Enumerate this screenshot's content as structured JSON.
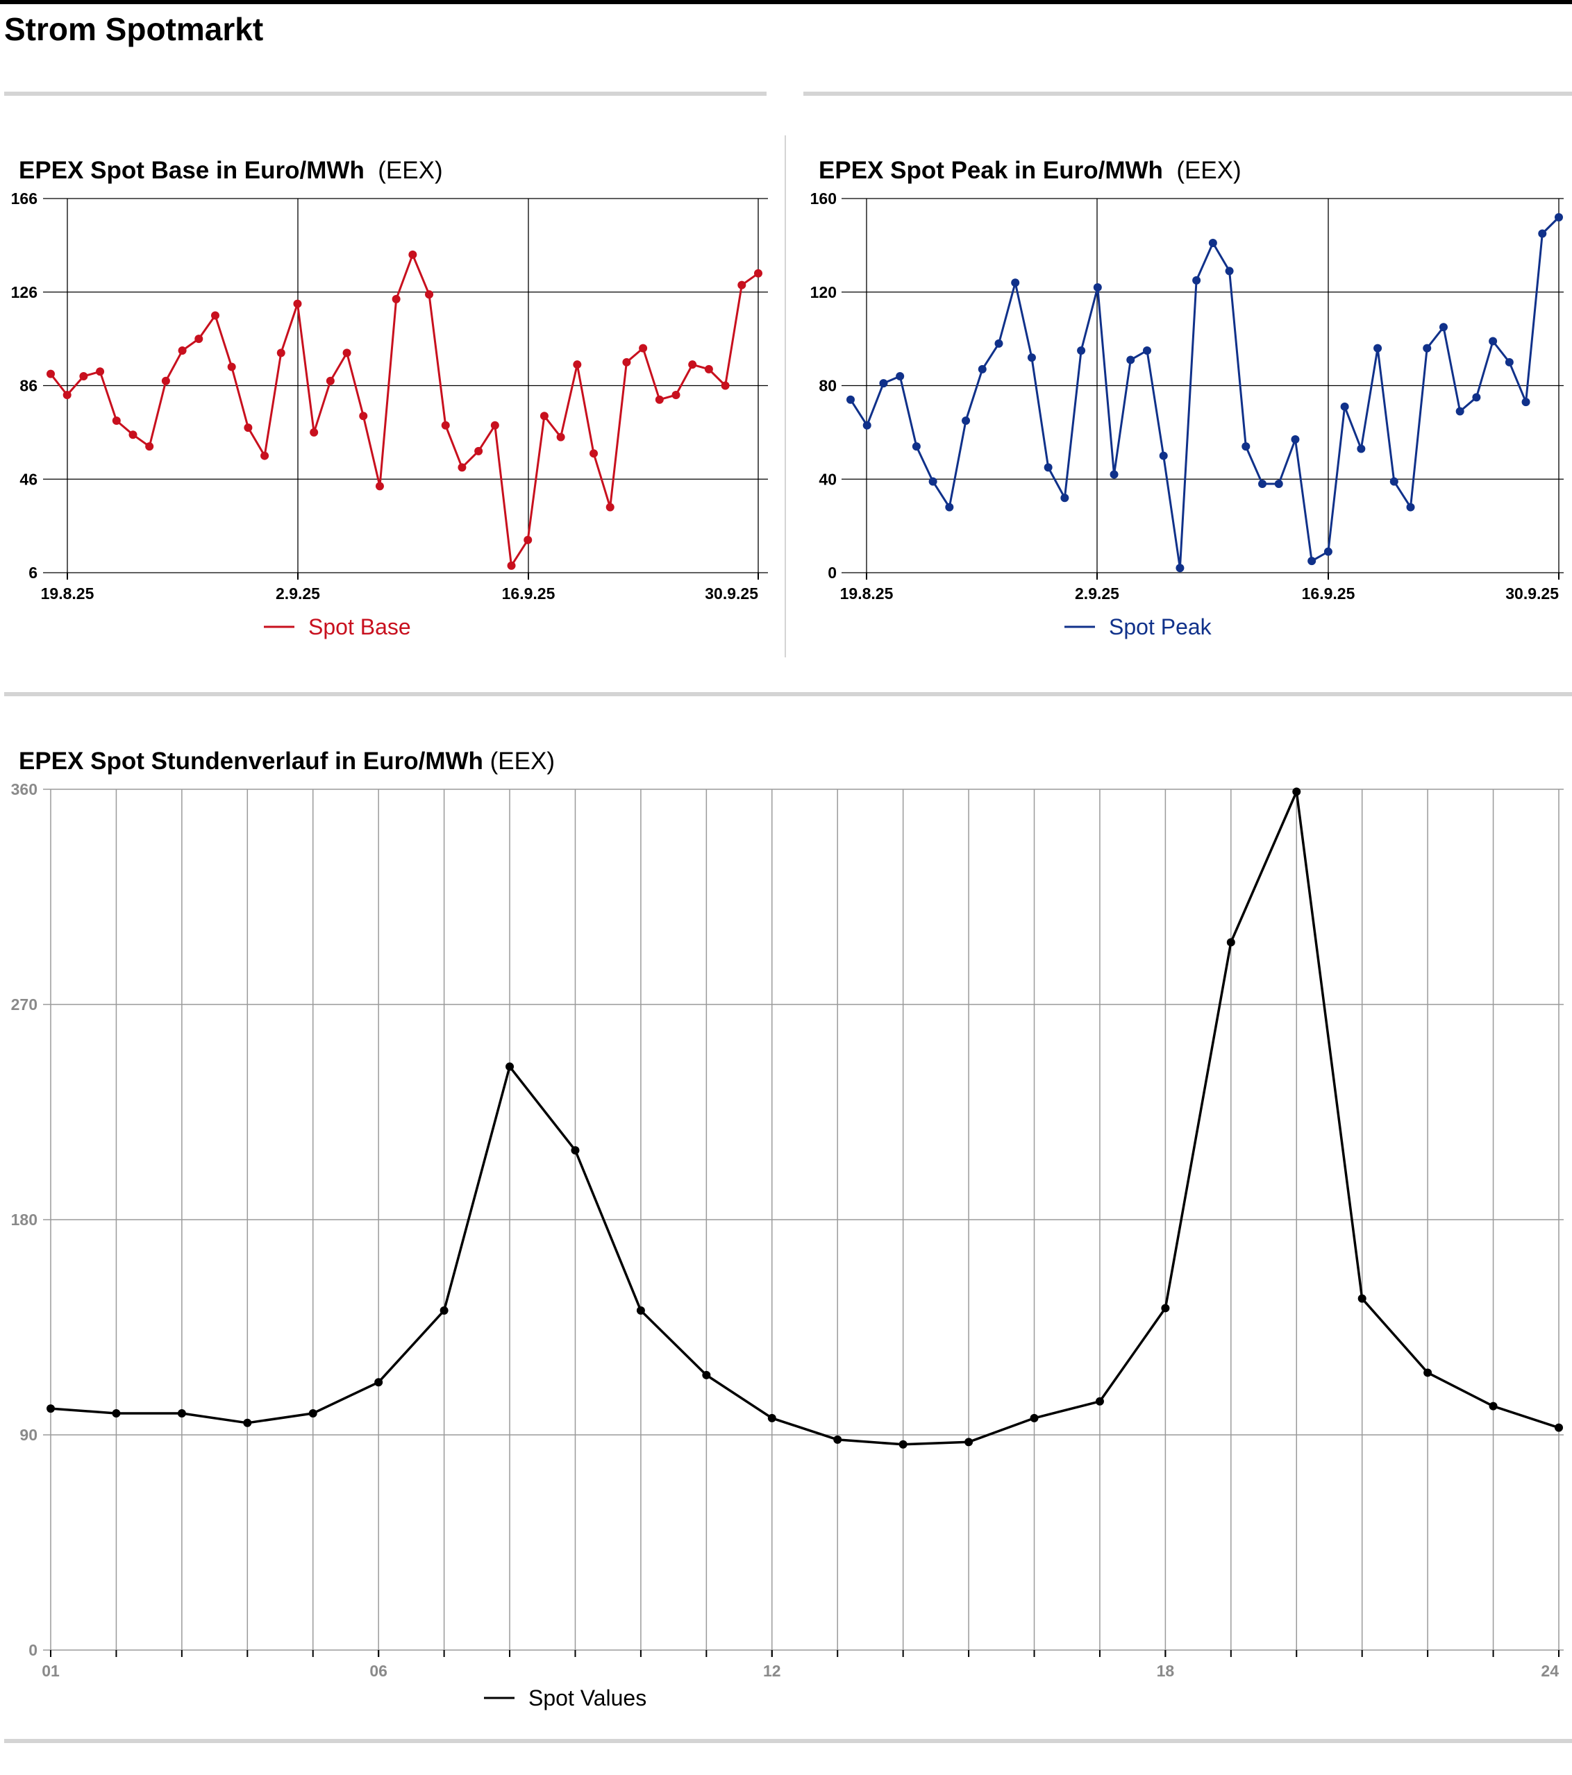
{
  "page_title": "Strom Spotmarkt",
  "colors": {
    "base": "#c8101e",
    "peak": "#10318a",
    "hourly": "#000000",
    "rule": "#d4d4d4"
  },
  "chart_data": [
    {
      "id": "base",
      "type": "line",
      "title": "EPEX Spot Base in Euro/MWh",
      "source": "(EEX)",
      "ylim": [
        6,
        166
      ],
      "yticks": [
        "6",
        "46",
        "86",
        "126",
        "166"
      ],
      "xtick_labels": [
        "19.8.25",
        "2.9.25",
        "16.9.25",
        "30.9.25"
      ],
      "grid": true,
      "legend_position": "bottom-center",
      "series": [
        {
          "name": "Spot Base",
          "color": "#c8101e",
          "values": [
            91,
            82,
            90,
            92,
            71,
            65,
            60,
            88,
            101,
            106,
            116,
            94,
            68,
            56,
            100,
            121,
            66,
            88,
            100,
            73,
            43,
            123,
            142,
            125,
            69,
            51,
            58,
            69,
            9,
            20,
            73,
            64,
            95,
            57,
            34,
            96,
            102,
            80,
            82,
            95,
            93,
            86,
            129,
            134
          ]
        }
      ]
    },
    {
      "id": "peak",
      "type": "line",
      "title": "EPEX Spot Peak in Euro/MWh",
      "source": "(EEX)",
      "ylim": [
        0,
        160
      ],
      "yticks": [
        "0",
        "40",
        "80",
        "120",
        "160"
      ],
      "xtick_labels": [
        "19.8.25",
        "2.9.25",
        "16.9.25",
        "30.9.25"
      ],
      "grid": true,
      "legend_position": "bottom-center",
      "series": [
        {
          "name": "Spot Peak",
          "color": "#10318a",
          "values": [
            74,
            63,
            81,
            84,
            54,
            39,
            28,
            65,
            87,
            98,
            124,
            92,
            45,
            32,
            95,
            122,
            42,
            91,
            95,
            50,
            2,
            125,
            141,
            129,
            54,
            38,
            38,
            57,
            5,
            9,
            71,
            53,
            96,
            39,
            28,
            96,
            105,
            69,
            75,
            99,
            90,
            73,
            145,
            152
          ]
        }
      ]
    },
    {
      "id": "hourly",
      "type": "line",
      "title": "EPEX Spot Stundenverlauf in Euro/MWh",
      "source": "(EEX)",
      "ylim": [
        0,
        360
      ],
      "yticks": [
        "0",
        "90",
        "180",
        "270",
        "360"
      ],
      "x": [
        1,
        2,
        3,
        4,
        5,
        6,
        7,
        8,
        9,
        10,
        11,
        12,
        13,
        14,
        15,
        16,
        17,
        18,
        19,
        20,
        21,
        22,
        23,
        24
      ],
      "xtick_labels": [
        "01",
        "06",
        "12",
        "18",
        "24"
      ],
      "grid": true,
      "legend_position": "bottom-left",
      "series": [
        {
          "name": "Spot Values",
          "color": "#000000",
          "values": [
            101,
            99,
            99,
            95,
            99,
            112,
            142,
            244,
            209,
            142,
            115,
            97,
            88,
            86,
            87,
            97,
            104,
            143,
            296,
            359,
            147,
            116,
            102,
            93
          ]
        }
      ]
    }
  ]
}
